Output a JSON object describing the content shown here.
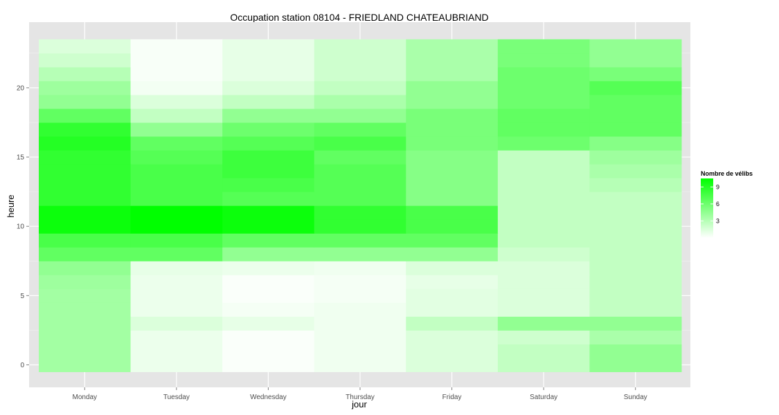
{
  "chart_data": {
    "type": "heatmap",
    "title": "Occupation station 08104 - FRIEDLAND CHATEAUBRIAND",
    "xlabel": "jour",
    "ylabel": "heure",
    "x_categories": [
      "Monday",
      "Tuesday",
      "Wednesday",
      "Thursday",
      "Friday",
      "Saturday",
      "Sunday"
    ],
    "y_hours": [
      0,
      1,
      2,
      3,
      4,
      5,
      6,
      7,
      8,
      9,
      10,
      11,
      12,
      13,
      14,
      15,
      16,
      17,
      18,
      19,
      20,
      21,
      22,
      23
    ],
    "y_ticks": [
      0,
      5,
      10,
      15,
      20
    ],
    "y_tick_labels": [
      "0",
      "5",
      "10",
      "15",
      "20"
    ],
    "ylim": [
      -0.5,
      23.5
    ],
    "grid": true,
    "legend": {
      "title": "Nombre de vélibs",
      "position": "right",
      "breaks": [
        3,
        6,
        9
      ],
      "break_labels": [
        "3",
        "6",
        "9"
      ],
      "range": [
        0,
        10.5
      ],
      "low_color": "#ffffff",
      "high_color": "#00ff00"
    },
    "values": [
      [
        3.8,
        0.8,
        0.2,
        0.6,
        1.5,
        2.5,
        4.5
      ],
      [
        3.8,
        0.8,
        0.2,
        0.6,
        1.5,
        2.5,
        4.5
      ],
      [
        3.8,
        0.8,
        0.2,
        0.6,
        1.5,
        2.0,
        3.5
      ],
      [
        3.8,
        1.5,
        1.0,
        0.6,
        2.5,
        4.5,
        4.5
      ],
      [
        3.8,
        0.8,
        0.4,
        0.6,
        1.2,
        1.5,
        2.5
      ],
      [
        3.8,
        0.8,
        0.2,
        0.4,
        1.2,
        1.5,
        2.5
      ],
      [
        4.0,
        0.8,
        0.2,
        0.4,
        1.0,
        1.5,
        2.5
      ],
      [
        4.5,
        1.0,
        0.8,
        0.6,
        1.5,
        1.5,
        2.5
      ],
      [
        6.5,
        6.5,
        4.5,
        4.5,
        4.5,
        2.0,
        2.5
      ],
      [
        7.5,
        7.5,
        6.5,
        6.5,
        6.5,
        2.5,
        2.5
      ],
      [
        10.0,
        10.5,
        10.0,
        8.5,
        7.5,
        2.5,
        2.5
      ],
      [
        10.0,
        10.5,
        10.0,
        8.5,
        7.5,
        2.5,
        2.5
      ],
      [
        8.5,
        7.5,
        7.0,
        7.0,
        5.0,
        2.5,
        2.5
      ],
      [
        8.5,
        7.5,
        7.5,
        7.0,
        5.0,
        2.5,
        3.0
      ],
      [
        8.5,
        7.5,
        8.0,
        7.0,
        5.0,
        2.5,
        3.5
      ],
      [
        8.5,
        7.0,
        8.0,
        6.5,
        5.0,
        2.5,
        4.0
      ],
      [
        9.0,
        6.5,
        7.0,
        7.5,
        5.5,
        6.0,
        5.0
      ],
      [
        8.5,
        4.5,
        6.0,
        6.5,
        5.5,
        6.5,
        6.5
      ],
      [
        6.5,
        2.5,
        4.5,
        4.5,
        5.5,
        6.5,
        6.5
      ],
      [
        4.5,
        1.5,
        2.5,
        3.5,
        4.5,
        6.0,
        6.5
      ],
      [
        4.0,
        0.5,
        1.5,
        2.5,
        4.5,
        6.0,
        7.0
      ],
      [
        3.0,
        0.3,
        1.0,
        2.0,
        3.5,
        6.0,
        5.5
      ],
      [
        2.0,
        0.3,
        1.0,
        2.0,
        3.5,
        5.5,
        4.5
      ],
      [
        1.5,
        0.3,
        1.0,
        2.0,
        3.5,
        5.5,
        4.5
      ]
    ]
  },
  "colors": {
    "panel_background": "#e5e5e5",
    "grid_major": "#ffffff",
    "grid_minor": "#f2f2f2",
    "tick_text": "#4d4d4d"
  }
}
